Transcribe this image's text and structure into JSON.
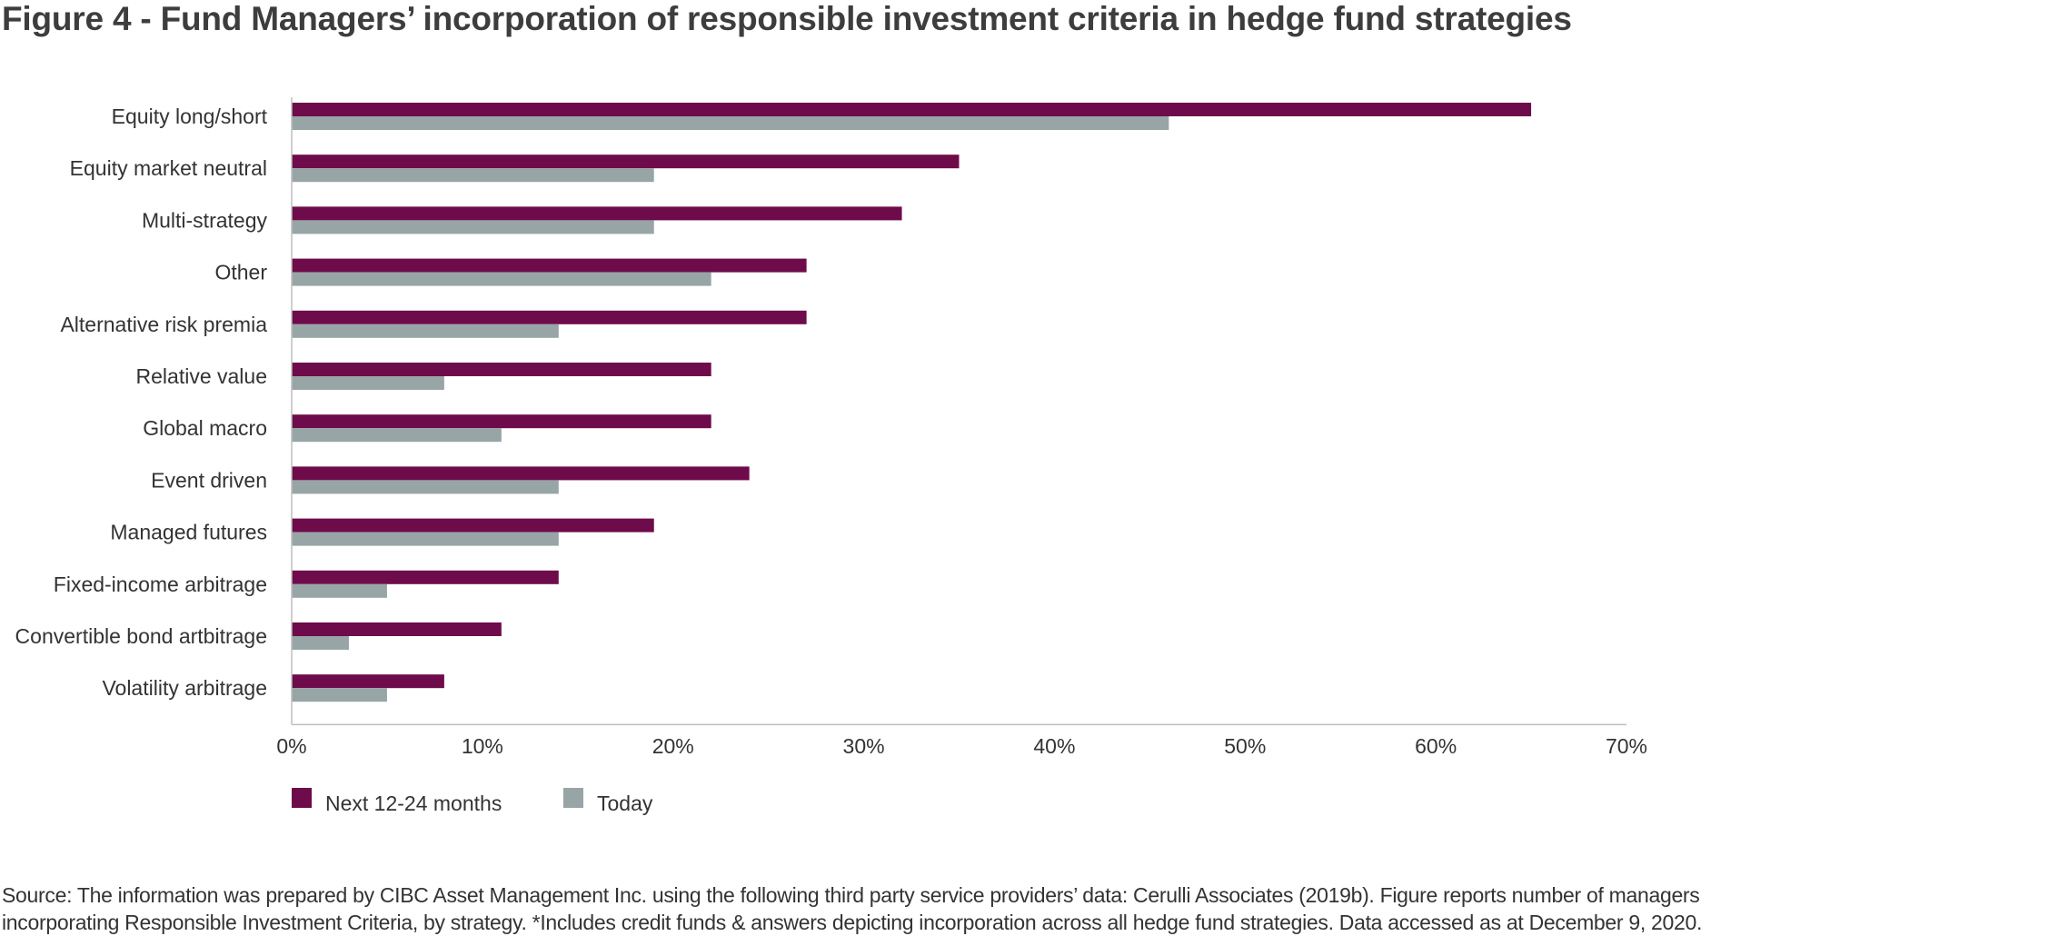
{
  "title": "Figure 4 - Fund Managers’ incorporation of responsible investment criteria in hedge fund strategies",
  "source": {
    "line1": "Source: The information was prepared by CIBC Asset Management Inc. using the following third party service providers’ data: Cerulli Associates (2019b). Figure reports number of managers",
    "line2": "incorporating Responsible Investment Criteria, by strategy.  *Includes credit funds & answers depicting incorporation across all hedge fund strategies. Data accessed as at December 9, 2020."
  },
  "chart_data": {
    "type": "bar",
    "orientation": "horizontal",
    "title": "Figure 4 - Fund Managers’ incorporation of responsible investment criteria in hedge fund strategies",
    "categories": [
      "Equity long/short",
      "Equity market neutral",
      "Multi-strategy",
      "Other",
      "Alternative risk premia",
      "Relative value",
      "Global macro",
      "Event driven",
      "Managed futures",
      "Fixed-income arbitrage",
      "Convertible bond artbitrage",
      "Volatility arbitrage"
    ],
    "series": [
      {
        "name": "Next 12-24 months",
        "color": "#6e0b4a",
        "values": [
          65,
          35,
          32,
          27,
          27,
          22,
          22,
          24,
          19,
          14,
          11,
          8
        ]
      },
      {
        "name": "Today",
        "color": "#98a5a6",
        "values": [
          46,
          19,
          19,
          22,
          14,
          8,
          11,
          14,
          14,
          5,
          3,
          5
        ]
      }
    ],
    "x_ticks": [
      "0%",
      "10%",
      "20%",
      "30%",
      "40%",
      "50%",
      "60%",
      "70%"
    ],
    "xlim": [
      0,
      70
    ],
    "unit": "%",
    "grid": false,
    "legend": "bottom-left"
  }
}
